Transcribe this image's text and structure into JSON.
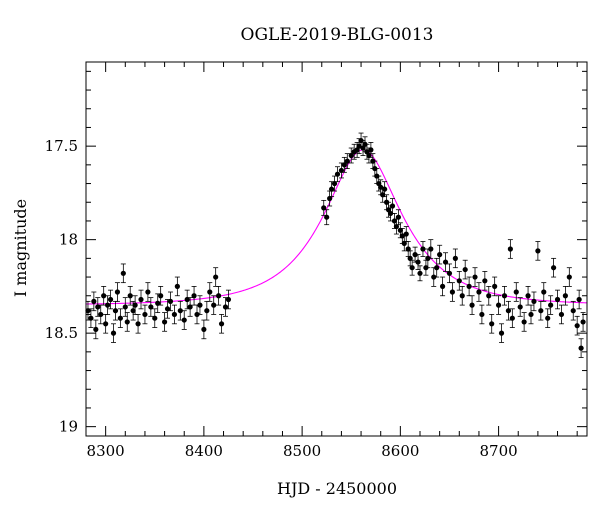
{
  "chart_data": {
    "type": "scatter",
    "title": "OGLE-2019-BLG-0013",
    "xlabel": "HJD - 2450000",
    "ylabel": "I magnitude",
    "xlim": [
      8280,
      8790
    ],
    "ylim": [
      19.05,
      17.05
    ],
    "y_inverted": true,
    "x_ticks": [
      8300,
      8400,
      8500,
      8600,
      8700
    ],
    "y_ticks": [
      17.5,
      18,
      18.5,
      19
    ],
    "x_tick_labels": [
      "8300",
      "8400",
      "8500",
      "8600",
      "8700"
    ],
    "y_tick_labels": [
      "17.5",
      "18",
      "18.5",
      "19"
    ],
    "grid": false,
    "legend": "none",
    "colors": {
      "points": "#000000",
      "model": "#ff00ff",
      "axes": "#000000"
    },
    "model_curve": {
      "baseline": 18.35,
      "peak_time": 8562,
      "peak_mag": 17.52,
      "tE": 68,
      "x": [
        8280,
        8300,
        8350,
        8400,
        8450,
        8480,
        8500,
        8520,
        8530,
        8540,
        8550,
        8560,
        8562,
        8570,
        8580,
        8590,
        8600,
        8620,
        8650,
        8700,
        8750,
        8790
      ],
      "y": [
        18.34,
        18.34,
        18.33,
        18.31,
        18.26,
        18.2,
        18.12,
        17.97,
        17.86,
        17.72,
        17.6,
        17.53,
        17.52,
        17.55,
        17.66,
        17.8,
        17.93,
        18.08,
        18.18,
        18.27,
        18.32,
        18.34
      ]
    },
    "series": [
      {
        "x": [
          8282,
          8285,
          8288,
          8290,
          8292,
          8295,
          8298,
          8300,
          8302,
          8305,
          8308,
          8310,
          8312,
          8315,
          8318,
          8320,
          8322,
          8325,
          8328,
          8330,
          8333,
          8336,
          8340,
          8343,
          8346,
          8350,
          8353,
          8356,
          8360,
          8363,
          8366,
          8370,
          8373,
          8376,
          8380,
          8383,
          8386,
          8390,
          8393,
          8396,
          8400,
          8403,
          8406,
          8410,
          8412,
          8415,
          8418,
          8422,
          8425
        ],
        "y": [
          18.38,
          18.42,
          18.33,
          18.48,
          18.36,
          18.4,
          18.3,
          18.45,
          18.35,
          18.32,
          18.5,
          18.38,
          18.28,
          18.42,
          18.18,
          18.36,
          18.44,
          18.3,
          18.38,
          18.35,
          18.45,
          18.32,
          18.4,
          18.28,
          18.36,
          18.42,
          18.34,
          18.3,
          18.44,
          18.37,
          18.33,
          18.4,
          18.25,
          18.38,
          18.43,
          18.32,
          18.36,
          18.3,
          18.4,
          18.35,
          18.48,
          18.38,
          18.28,
          18.35,
          18.2,
          18.3,
          18.45,
          18.36,
          18.32
        ],
        "yerr": 0.05
      },
      {
        "x": [
          8522,
          8525,
          8528,
          8530,
          8533,
          8536,
          8540,
          8543,
          8546,
          8550,
          8553,
          8556,
          8558,
          8560,
          8562,
          8564,
          8566,
          8568,
          8570,
          8572,
          8574,
          8576,
          8578,
          8580,
          8582,
          8584,
          8586,
          8588,
          8590,
          8592,
          8594,
          8596,
          8598,
          8600,
          8602,
          8604,
          8606,
          8608,
          8610,
          8612,
          8615,
          8618,
          8620,
          8623,
          8626
        ],
        "y": [
          17.83,
          17.88,
          17.78,
          17.73,
          17.7,
          17.65,
          17.63,
          17.6,
          17.58,
          17.55,
          17.53,
          17.52,
          17.5,
          17.47,
          17.51,
          17.49,
          17.53,
          17.55,
          17.52,
          17.58,
          17.62,
          17.66,
          17.7,
          17.72,
          17.76,
          17.73,
          17.8,
          17.84,
          17.86,
          17.82,
          17.9,
          17.93,
          17.88,
          17.95,
          17.98,
          18.02,
          17.97,
          18.05,
          18.1,
          18.15,
          18.08,
          18.12,
          18.18,
          18.05,
          18.15
        ],
        "yerr": 0.04
      },
      {
        "x": [
          8628,
          8631,
          8634,
          8637,
          8640,
          8643,
          8646,
          8650,
          8653,
          8656,
          8660,
          8663,
          8666,
          8670,
          8673,
          8676,
          8680,
          8683,
          8686,
          8690,
          8693,
          8696,
          8700,
          8703,
          8706,
          8710,
          8712,
          8714,
          8718,
          8722,
          8726,
          8730,
          8733,
          8736,
          8740,
          8743,
          8746,
          8750,
          8753,
          8756,
          8760,
          8764,
          8768,
          8772,
          8776,
          8780,
          8782,
          8784,
          8786
        ],
        "y": [
          18.1,
          18.05,
          18.2,
          18.15,
          18.08,
          18.25,
          18.12,
          18.18,
          18.28,
          18.1,
          18.22,
          18.3,
          18.16,
          18.25,
          18.35,
          18.2,
          18.28,
          18.4,
          18.22,
          18.3,
          18.45,
          18.25,
          18.35,
          18.5,
          18.3,
          18.38,
          18.05,
          18.42,
          18.28,
          18.36,
          18.44,
          18.3,
          18.4,
          18.33,
          18.06,
          18.38,
          18.28,
          18.42,
          18.35,
          18.15,
          18.32,
          18.4,
          18.3,
          18.2,
          18.38,
          18.46,
          18.32,
          18.58,
          18.44
        ],
        "yerr": 0.05
      }
    ]
  }
}
